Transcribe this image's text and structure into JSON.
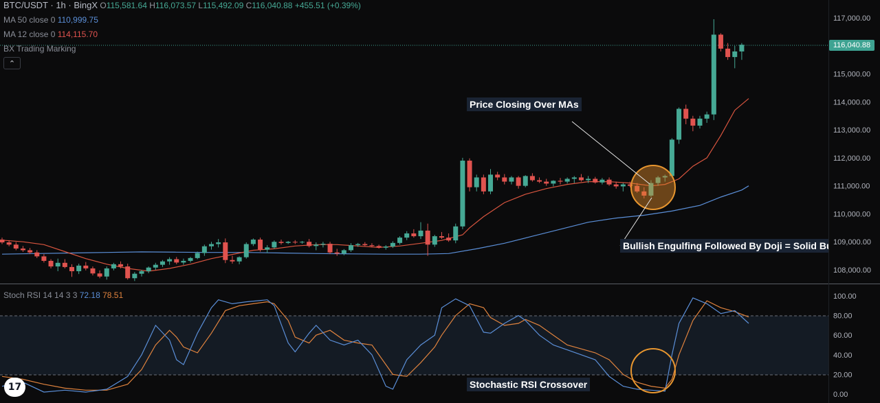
{
  "header": {
    "symbol": "BTC/USDT · 1h · BingX",
    "open_label": "O",
    "open": "115,581.64",
    "high_label": "H",
    "high": "116,073.57",
    "low_label": "L",
    "low": "115,492.09",
    "close_label": "C",
    "close": "116,040.88",
    "change": "+455.51 (+0.39%)"
  },
  "indicators": {
    "ma50_label": "MA 50 close 0",
    "ma50_value": "110,999.75",
    "ma12_label": "MA 12 close 0",
    "ma12_value": "114,115.70",
    "marking_label": "BX Trading Marking",
    "collapse_icon": "chevron-up-icon"
  },
  "stoch": {
    "label": "Stoch RSI 14 14 3 3",
    "k_value": "72.18",
    "d_value": "78.51",
    "ticks": [
      "100.00",
      "80.00",
      "60.00",
      "40.00",
      "20.00",
      "0.00"
    ]
  },
  "price_axis": {
    "ticks": [
      "117,000.00",
      "116,000.00",
      "115,000.00",
      "114,000.00",
      "113,000.00",
      "112,000.00",
      "111,000.00",
      "110,000.00",
      "109,000.00",
      "108,000.00"
    ],
    "last_price": "116,040.88"
  },
  "annotations": {
    "price_closing": "Price Closing Over MAs",
    "bullish_engulfing": "Bullish Engulfing Followed By Doji = Solid Bu",
    "stoch_crossover": "Stochastic RSI Crossover"
  },
  "logo": {
    "text": "17",
    "icon": "tradingview-logo-icon"
  },
  "colors": {
    "bull": "#46a995",
    "bear": "#e0534f",
    "ma50": "#5b8fd8",
    "ma12": "#d9553f",
    "stoch_k": "#5b8fd8",
    "stoch_d": "#e0833e",
    "highlight": "#e08a2b"
  },
  "chart_data": {
    "type": "candlestick",
    "price_range": [
      107700,
      117650
    ],
    "stoch_range": [
      0,
      100
    ],
    "candles": [
      [
        109080,
        109150,
        108920,
        108980
      ],
      [
        108980,
        109060,
        108840,
        108900
      ],
      [
        108900,
        108990,
        108700,
        108760
      ],
      [
        108760,
        108850,
        108640,
        108700
      ],
      [
        108700,
        108780,
        108560,
        108620
      ],
      [
        108620,
        108700,
        108420,
        108480
      ],
      [
        108480,
        108560,
        108260,
        108320
      ],
      [
        108320,
        108380,
        108050,
        108120
      ],
      [
        108120,
        108400,
        107950,
        108250
      ],
      [
        108250,
        108380,
        108050,
        108100
      ],
      [
        108100,
        108200,
        107750,
        107950
      ],
      [
        107950,
        108220,
        107850,
        108150
      ],
      [
        108150,
        108280,
        107980,
        108050
      ],
      [
        108050,
        108120,
        107800,
        107870
      ],
      [
        107870,
        107980,
        107700,
        107760
      ],
      [
        107760,
        108120,
        107650,
        108050
      ],
      [
        108050,
        108250,
        107980,
        108200
      ],
      [
        108200,
        108300,
        108050,
        108120
      ],
      [
        108120,
        108220,
        107650,
        107700
      ],
      [
        107700,
        107920,
        107600,
        107860
      ],
      [
        107860,
        108000,
        107760,
        107950
      ],
      [
        107950,
        108120,
        107880,
        108080
      ],
      [
        108080,
        108250,
        108000,
        108180
      ],
      [
        108180,
        108350,
        108100,
        108300
      ],
      [
        108300,
        108450,
        108180,
        108380
      ],
      [
        108380,
        108460,
        108200,
        108260
      ],
      [
        108260,
        108400,
        108180,
        108320
      ],
      [
        108320,
        108460,
        108260,
        108420
      ],
      [
        108420,
        108650,
        108380,
        108600
      ],
      [
        108600,
        108900,
        108500,
        108840
      ],
      [
        108840,
        109000,
        108720,
        108920
      ],
      [
        108920,
        109100,
        108800,
        108980
      ],
      [
        108980,
        109120,
        108240,
        108350
      ],
      [
        108350,
        108500,
        108220,
        108300
      ],
      [
        108300,
        108480,
        108200,
        108450
      ],
      [
        108450,
        108980,
        108400,
        108920
      ],
      [
        108920,
        109120,
        108850,
        109080
      ],
      [
        109080,
        109150,
        108650,
        108720
      ],
      [
        108720,
        108880,
        108600,
        108800
      ],
      [
        108800,
        109050,
        108750,
        109000
      ],
      [
        109000,
        109080,
        108900,
        108960
      ],
      [
        108960,
        109030,
        108920,
        109000
      ],
      [
        109000,
        109060,
        108920,
        108980
      ],
      [
        108980,
        109030,
        108930,
        109000
      ],
      [
        109000,
        109100,
        108800,
        108850
      ],
      [
        108850,
        108980,
        108700,
        108900
      ],
      [
        108900,
        109000,
        108800,
        108930
      ],
      [
        108930,
        109000,
        108560,
        108620
      ],
      [
        108620,
        108750,
        108500,
        108580
      ],
      [
        108580,
        108740,
        108520,
        108700
      ],
      [
        108700,
        108950,
        108640,
        108880
      ],
      [
        108880,
        108960,
        108820,
        108920
      ],
      [
        108920,
        108990,
        108850,
        108880
      ],
      [
        108880,
        108950,
        108800,
        108850
      ],
      [
        108850,
        108900,
        108760,
        108790
      ],
      [
        108790,
        108880,
        108720,
        108830
      ],
      [
        108830,
        109020,
        108780,
        108960
      ],
      [
        108960,
        109200,
        108900,
        109150
      ],
      [
        109150,
        109380,
        109060,
        109300
      ],
      [
        109300,
        109450,
        109150,
        109200
      ],
      [
        109200,
        109700,
        109100,
        109400
      ],
      [
        109400,
        109650,
        108500,
        108900
      ],
      [
        108900,
        109250,
        108820,
        109200
      ],
      [
        109200,
        109350,
        109100,
        109150
      ],
      [
        109150,
        109300,
        109000,
        109050
      ],
      [
        109050,
        109650,
        108950,
        109550
      ],
      [
        109550,
        112000,
        109450,
        111900
      ],
      [
        111900,
        111980,
        110800,
        110950
      ],
      [
        110950,
        111400,
        110800,
        111300
      ],
      [
        111300,
        111400,
        110700,
        110800
      ],
      [
        110800,
        111600,
        110700,
        111400
      ],
      [
        111400,
        111500,
        111200,
        111300
      ],
      [
        111300,
        111420,
        111050,
        111150
      ],
      [
        111150,
        111350,
        111050,
        111300
      ],
      [
        111300,
        111350,
        110900,
        111000
      ],
      [
        111000,
        111380,
        110950,
        111350
      ],
      [
        111350,
        111450,
        111150,
        111200
      ],
      [
        111200,
        111300,
        111100,
        111150
      ],
      [
        111150,
        111250,
        111000,
        111080
      ],
      [
        111080,
        111200,
        110980,
        111180
      ],
      [
        111180,
        111280,
        111050,
        111150
      ],
      [
        111150,
        111300,
        111080,
        111250
      ],
      [
        111250,
        111350,
        111100,
        111300
      ],
      [
        111300,
        111420,
        111150,
        111200
      ],
      [
        111200,
        111350,
        111100,
        111250
      ],
      [
        111250,
        111320,
        111080,
        111120
      ],
      [
        111120,
        111280,
        111050,
        111220
      ],
      [
        111220,
        111300,
        111000,
        111050
      ],
      [
        111050,
        111150,
        110900,
        110980
      ],
      [
        110980,
        111100,
        110800,
        111050
      ],
      [
        111050,
        111150,
        110950,
        111000
      ],
      [
        111000,
        111100,
        110750,
        110800
      ],
      [
        110800,
        110950,
        110550,
        110650
      ],
      [
        110650,
        111200,
        110600,
        111100
      ],
      [
        111100,
        111350,
        111000,
        111300
      ],
      [
        111300,
        111400,
        111150,
        111350
      ],
      [
        111350,
        112700,
        111300,
        112650
      ],
      [
        112650,
        113800,
        112500,
        113750
      ],
      [
        113750,
        113900,
        113200,
        113400
      ],
      [
        113400,
        113500,
        112950,
        113150
      ],
      [
        113150,
        113500,
        113050,
        113400
      ],
      [
        113400,
        113650,
        113250,
        113550
      ],
      [
        113550,
        116950,
        113350,
        116400
      ],
      [
        116400,
        116450,
        115800,
        115900
      ],
      [
        115900,
        116100,
        115500,
        115600
      ],
      [
        115600,
        116000,
        115200,
        115800
      ],
      [
        115800,
        116100,
        115500,
        116040
      ]
    ],
    "ma12": [
      [
        0,
        109060
      ],
      [
        3,
        109000
      ],
      [
        6,
        108900
      ],
      [
        9,
        108650
      ],
      [
        12,
        108400
      ],
      [
        15,
        108200
      ],
      [
        18,
        108050
      ],
      [
        21,
        107950
      ],
      [
        24,
        108050
      ],
      [
        27,
        108200
      ],
      [
        30,
        108400
      ],
      [
        33,
        108550
      ],
      [
        36,
        108700
      ],
      [
        39,
        108750
      ],
      [
        42,
        108850
      ],
      [
        45,
        108900
      ],
      [
        48,
        108900
      ],
      [
        51,
        108850
      ],
      [
        54,
        108800
      ],
      [
        57,
        108850
      ],
      [
        60,
        108950
      ],
      [
        63,
        109050
      ],
      [
        66,
        109250
      ],
      [
        67,
        109500
      ],
      [
        69,
        109900
      ],
      [
        72,
        110400
      ],
      [
        75,
        110700
      ],
      [
        78,
        110900
      ],
      [
        81,
        111050
      ],
      [
        84,
        111150
      ],
      [
        87,
        111150
      ],
      [
        90,
        111100
      ],
      [
        93,
        111000
      ],
      [
        95,
        111050
      ],
      [
        97,
        111250
      ],
      [
        99,
        111700
      ],
      [
        101,
        112000
      ],
      [
        103,
        112800
      ],
      [
        105,
        113700
      ],
      [
        107,
        114115
      ]
    ],
    "ma50": [
      [
        0,
        108560
      ],
      [
        5,
        108580
      ],
      [
        10,
        108600
      ],
      [
        15,
        108620
      ],
      [
        20,
        108640
      ],
      [
        25,
        108630
      ],
      [
        30,
        108620
      ],
      [
        35,
        108620
      ],
      [
        40,
        108600
      ],
      [
        45,
        108580
      ],
      [
        50,
        108570
      ],
      [
        55,
        108560
      ],
      [
        60,
        108560
      ],
      [
        64,
        108580
      ],
      [
        68,
        108750
      ],
      [
        72,
        108950
      ],
      [
        76,
        109200
      ],
      [
        80,
        109450
      ],
      [
        84,
        109700
      ],
      [
        88,
        109850
      ],
      [
        92,
        109950
      ],
      [
        96,
        110100
      ],
      [
        100,
        110300
      ],
      [
        103,
        110600
      ],
      [
        106,
        110850
      ],
      [
        107,
        111000
      ]
    ],
    "stoch_k": [
      [
        0,
        8
      ],
      [
        3,
        12
      ],
      [
        6,
        2
      ],
      [
        9,
        4
      ],
      [
        12,
        2
      ],
      [
        15,
        5
      ],
      [
        18,
        18
      ],
      [
        20,
        40
      ],
      [
        22,
        70
      ],
      [
        24,
        55
      ],
      [
        25,
        35
      ],
      [
        26,
        30
      ],
      [
        28,
        62
      ],
      [
        30,
        88
      ],
      [
        31,
        96
      ],
      [
        33,
        92
      ],
      [
        35,
        94
      ],
      [
        38,
        96
      ],
      [
        39,
        90
      ],
      [
        41,
        52
      ],
      [
        42,
        43
      ],
      [
        44,
        62
      ],
      [
        45,
        70
      ],
      [
        47,
        55
      ],
      [
        49,
        50
      ],
      [
        51,
        55
      ],
      [
        53,
        40
      ],
      [
        55,
        8
      ],
      [
        56,
        5
      ],
      [
        58,
        35
      ],
      [
        60,
        50
      ],
      [
        62,
        60
      ],
      [
        63,
        88
      ],
      [
        65,
        97
      ],
      [
        67,
        90
      ],
      [
        69,
        63
      ],
      [
        70,
        62
      ],
      [
        72,
        72
      ],
      [
        74,
        80
      ],
      [
        75,
        75
      ],
      [
        77,
        60
      ],
      [
        79,
        50
      ],
      [
        81,
        45
      ],
      [
        83,
        40
      ],
      [
        85,
        35
      ],
      [
        87,
        18
      ],
      [
        89,
        8
      ],
      [
        91,
        5
      ],
      [
        93,
        4
      ],
      [
        95,
        3
      ],
      [
        96,
        40
      ],
      [
        97,
        72
      ],
      [
        99,
        98
      ],
      [
        101,
        92
      ],
      [
        103,
        82
      ],
      [
        105,
        85
      ],
      [
        107,
        72
      ]
    ],
    "stoch_d": [
      [
        0,
        18
      ],
      [
        3,
        15
      ],
      [
        6,
        10
      ],
      [
        9,
        6
      ],
      [
        12,
        4
      ],
      [
        15,
        4
      ],
      [
        18,
        10
      ],
      [
        20,
        25
      ],
      [
        22,
        50
      ],
      [
        24,
        65
      ],
      [
        25,
        58
      ],
      [
        26,
        48
      ],
      [
        28,
        42
      ],
      [
        30,
        62
      ],
      [
        32,
        85
      ],
      [
        34,
        90
      ],
      [
        36,
        92
      ],
      [
        38,
        94
      ],
      [
        39,
        92
      ],
      [
        41,
        75
      ],
      [
        42,
        58
      ],
      [
        44,
        52
      ],
      [
        45,
        60
      ],
      [
        47,
        65
      ],
      [
        49,
        55
      ],
      [
        51,
        52
      ],
      [
        53,
        50
      ],
      [
        55,
        30
      ],
      [
        56,
        20
      ],
      [
        58,
        18
      ],
      [
        60,
        32
      ],
      [
        62,
        48
      ],
      [
        63,
        60
      ],
      [
        65,
        80
      ],
      [
        67,
        92
      ],
      [
        69,
        88
      ],
      [
        70,
        78
      ],
      [
        72,
        70
      ],
      [
        74,
        72
      ],
      [
        75,
        76
      ],
      [
        77,
        70
      ],
      [
        79,
        60
      ],
      [
        81,
        50
      ],
      [
        83,
        46
      ],
      [
        85,
        42
      ],
      [
        87,
        35
      ],
      [
        89,
        20
      ],
      [
        91,
        12
      ],
      [
        93,
        8
      ],
      [
        95,
        6
      ],
      [
        96,
        15
      ],
      [
        97,
        40
      ],
      [
        99,
        75
      ],
      [
        101,
        95
      ],
      [
        103,
        88
      ],
      [
        105,
        84
      ],
      [
        107,
        78.5
      ]
    ]
  }
}
